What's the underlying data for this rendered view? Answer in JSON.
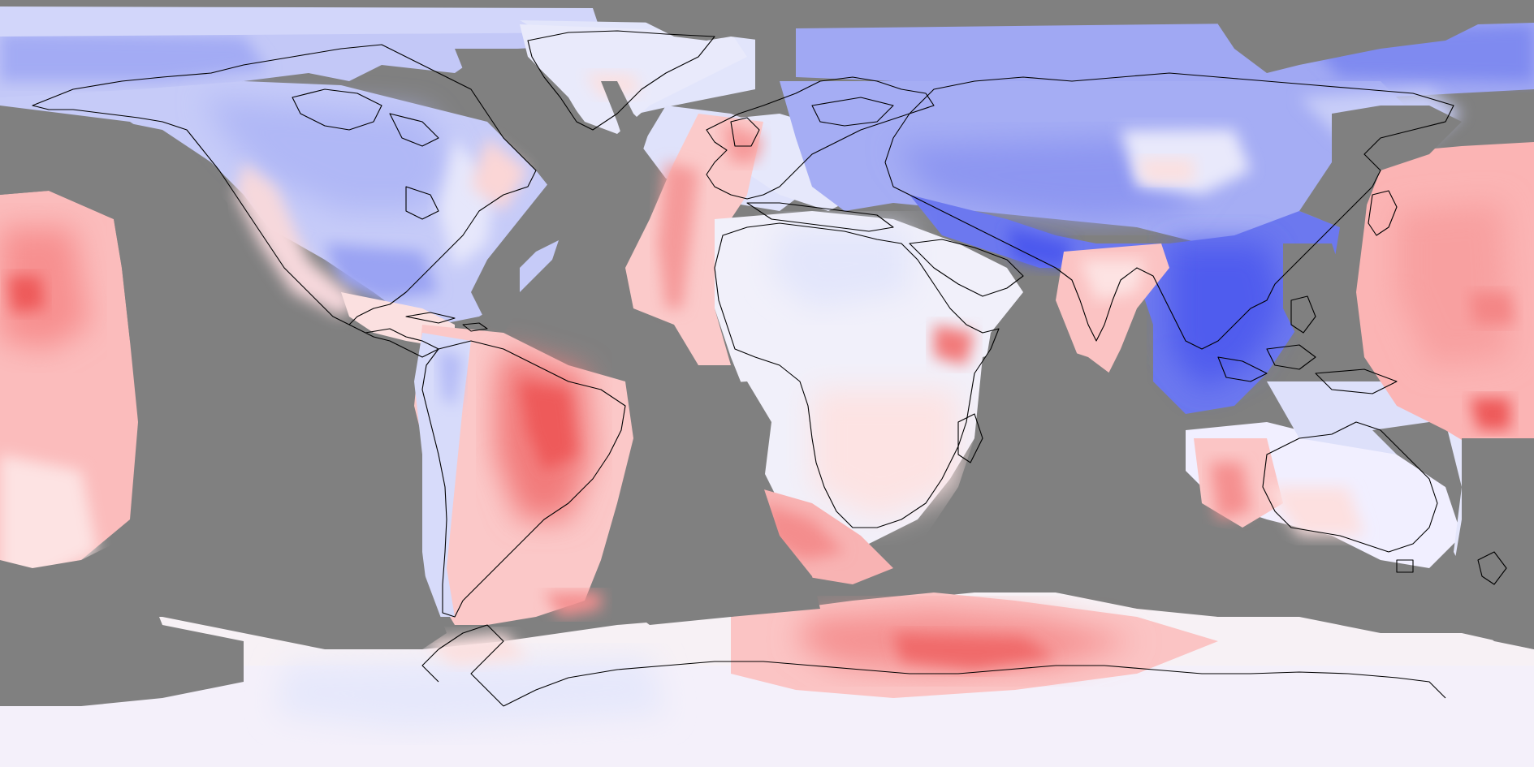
{
  "map": {
    "projection": "equirectangular",
    "colors": {
      "missing": "#808080",
      "coastline": "#000000",
      "strong_negative": "#4b58ee",
      "negative": "#7d88f0",
      "weak_negative": "#b9bff6",
      "faint_negative": "#e2e5fb",
      "neutral": "#f6f3f5",
      "faint_positive": "#fde3e3",
      "weak_positive": "#fbbcbc",
      "positive": "#f79090",
      "strong_positive": "#ee5a5a"
    },
    "regions": {
      "north_polar": "negative",
      "north_america": "weak_negative",
      "eurasia": "negative",
      "south_asia_southeast": "strong_negative",
      "india": "weak_positive",
      "africa": "faint_negative",
      "south_america": "positive",
      "australia": "weak_positive",
      "pacific_west": "positive",
      "pacific_east": "positive",
      "southern_ocean": "positive",
      "antarctica": "faint_positive"
    }
  }
}
